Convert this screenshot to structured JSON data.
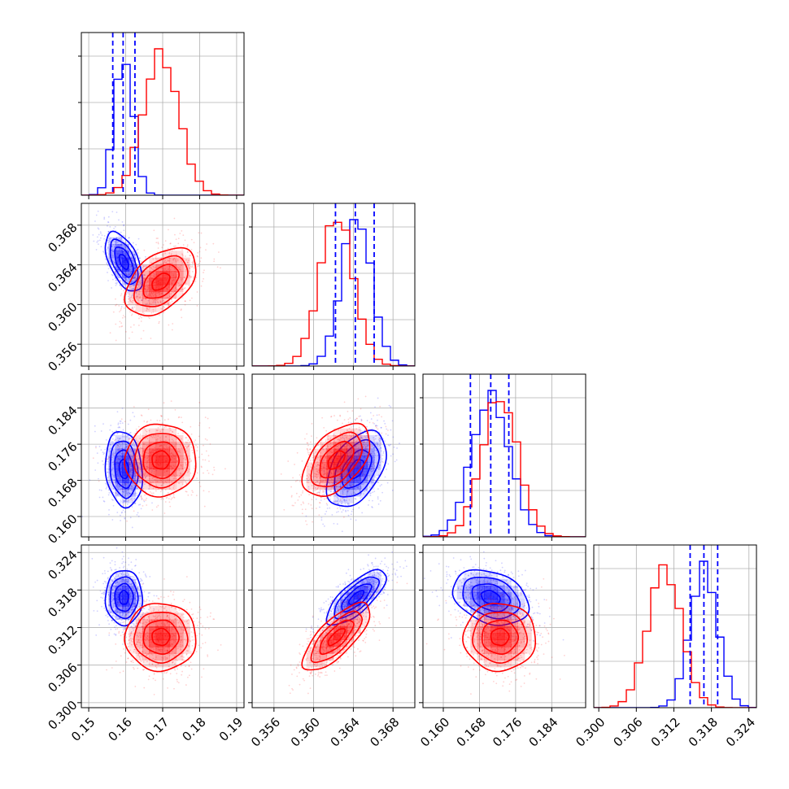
{
  "chart_data": {
    "type": "corner",
    "grid": true,
    "parameters": [
      {
        "range": [
          0.148,
          0.192
        ],
        "ticks": [
          0.15,
          0.16,
          0.17,
          0.18,
          0.19
        ],
        "tick_labels": [
          "0.15",
          "0.16",
          "0.17",
          "0.18",
          "0.19"
        ]
      },
      {
        "range": [
          0.3538,
          0.3702
        ],
        "ticks": [
          0.356,
          0.36,
          0.364,
          0.368
        ],
        "tick_labels": [
          "0.356",
          "0.360",
          "0.364",
          "0.368"
        ]
      },
      {
        "range": [
          0.1555,
          0.1915
        ],
        "ticks": [
          0.16,
          0.168,
          0.176,
          0.184
        ],
        "tick_labels": [
          "0.160",
          "0.168",
          "0.176",
          "0.184"
        ]
      },
      {
        "range": [
          0.2992,
          0.3252
        ],
        "ticks": [
          0.3,
          0.306,
          0.312,
          0.318,
          0.324
        ],
        "tick_labels": [
          "0.300",
          "0.306",
          "0.312",
          "0.318",
          "0.324"
        ]
      }
    ],
    "series": [
      {
        "color": "#0000ff",
        "mean": [
          0.1595,
          0.3643,
          0.1705,
          0.3168
        ],
        "std": [
          0.0025,
          0.0015,
          0.0042,
          0.0022
        ],
        "quantiles": [
          [
            0.1565,
            0.1593,
            0.1625
          ],
          [
            0.3622,
            0.3642,
            0.3661
          ],
          [
            0.166,
            0.1705,
            0.1745
          ],
          [
            0.3146,
            0.3168,
            0.319
          ]
        ],
        "correlation": [
          [
            1,
            -0.55,
            -0.15,
            0.0
          ],
          [
            -0.55,
            1,
            0.45,
            0.75
          ],
          [
            -0.15,
            0.45,
            1,
            -0.3
          ],
          [
            0.0,
            0.75,
            -0.3,
            1
          ]
        ]
      },
      {
        "color": "#ff0000",
        "mean": [
          0.1695,
          0.3623,
          0.1725,
          0.3105
        ],
        "std": [
          0.0048,
          0.0017,
          0.004,
          0.0027
        ],
        "correlation": [
          [
            1,
            0.45,
            0.0,
            0.0
          ],
          [
            0.45,
            1,
            0.5,
            0.75
          ],
          [
            0.0,
            0.5,
            1,
            0.0
          ],
          [
            0.0,
            0.75,
            0.0,
            1
          ]
        ]
      }
    ]
  }
}
